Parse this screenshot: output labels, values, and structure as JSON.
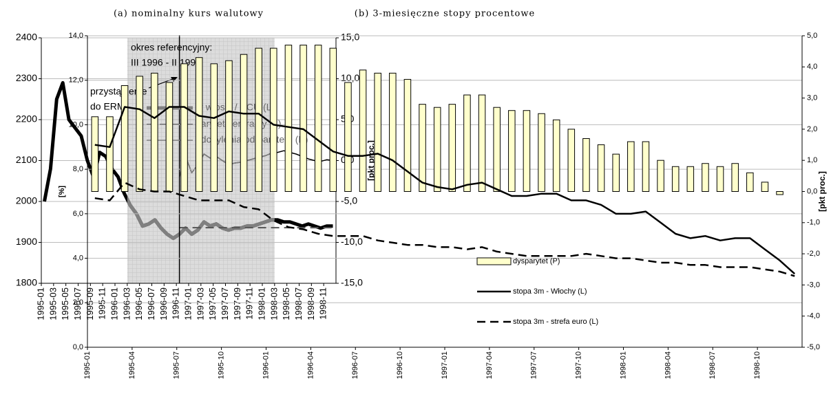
{
  "chart_data": [
    {
      "type": "line",
      "title": "(a) nominalny kurs walutowy",
      "y2label": "[pkt proc.]",
      "categories": [
        "1995-01",
        null,
        "1995-03",
        null,
        "1995-05",
        null,
        "1995-07",
        null,
        "1995-09",
        null,
        "1995-11",
        null,
        "1996-01",
        null,
        "1996-03",
        null,
        "1996-05",
        null,
        "1996-07",
        null,
        "1996-09",
        null,
        "1996-11",
        null,
        "1997-01",
        null,
        "1997-03",
        null,
        "1997-05",
        null,
        "1997-07",
        null,
        "1997-09",
        null,
        "1997-11",
        null,
        "1998-01",
        null,
        "1998-03",
        null,
        "1998-05",
        null,
        "1998-07",
        null,
        "1998-09",
        null,
        "1998-11",
        null
      ],
      "series": [
        {
          "name": "lir włoski / ECU (L)",
          "color": "#000000",
          "shaded_color": "#808080",
          "width": 5,
          "dash": false,
          "values": [
            2000,
            2080,
            2250,
            2290,
            2200,
            2180,
            2160,
            2100,
            2060,
            2120,
            2110,
            2080,
            2060,
            2020,
            1990,
            1970,
            1940,
            1945,
            1955,
            1935,
            1920,
            1910,
            1920,
            1935,
            1920,
            1930,
            1950,
            1940,
            1945,
            1935,
            1930,
            1935,
            1935,
            1940,
            1940,
            1945,
            1950,
            1955,
            1955,
            1950,
            1950,
            1945,
            1940,
            1945,
            1940,
            1935,
            1940,
            1940
          ]
        },
        {
          "name": "parytet centralny (L)",
          "color": "#555555",
          "width": 2,
          "dash": true,
          "values": [
            null,
            null,
            null,
            null,
            null,
            null,
            null,
            null,
            null,
            null,
            null,
            null,
            null,
            null,
            null,
            null,
            null,
            null,
            null,
            null,
            null,
            null,
            1936,
            1936,
            1936,
            1936,
            1936,
            1936,
            1936,
            1936,
            1936,
            1936,
            1936,
            1936,
            1936,
            1936,
            1936,
            1936,
            1936,
            1936,
            1936,
            1936,
            1936,
            1936,
            1936,
            1936,
            1936,
            1936
          ]
        },
        {
          "name": "odchylenia od parytetu (P)",
          "color": "#000000",
          "shaded_color": "#808080",
          "width": 1.5,
          "dash": false,
          "axis": "y2",
          "values": [
            null,
            null,
            null,
            null,
            null,
            null,
            null,
            null,
            null,
            null,
            null,
            null,
            null,
            null,
            null,
            null,
            null,
            null,
            null,
            null,
            null,
            null,
            -2.0,
            0.5,
            -1.5,
            -0.5,
            0.8,
            0.3,
            0.5,
            0.0,
            -0.5,
            -0.3,
            -0.2,
            0.0,
            0.2,
            0.4,
            0.6,
            0.9,
            1.0,
            1.2,
            1.0,
            0.8,
            0.5,
            0.2,
            0.0,
            -0.1,
            0.1,
            0.0
          ]
        }
      ],
      "ylim": [
        1800,
        2400
      ],
      "yticks": [
        1800,
        1900,
        2000,
        2100,
        2200,
        2300,
        2400
      ],
      "y2lim": [
        -15,
        15
      ],
      "y2ticks": [
        {
          "value": -15,
          "label": "-15,0"
        },
        {
          "value": -10,
          "label": "-10,0"
        },
        {
          "value": -5,
          "label": "-5,0"
        },
        {
          "value": 0,
          "label": "0,0"
        },
        {
          "value": 5,
          "label": "5,0"
        },
        {
          "value": 10,
          "label": "10,0"
        },
        {
          "value": 15,
          "label": "15,0"
        }
      ],
      "grid": true,
      "legend": "upper center",
      "annotations": [
        "okres referencyjny:",
        "III 1996 - II 1998",
        "przystąpienie",
        "do ERM"
      ]
    },
    {
      "type": "combo",
      "title": "(b) 3-miesięczne stopy procentowe",
      "ylabel": "[%]",
      "y2label": "[pkt proc.]",
      "categories": [
        "1995-01",
        null,
        null,
        "1995-04",
        null,
        null,
        "1995-07",
        null,
        null,
        "1995-10",
        null,
        null,
        "1996-01",
        null,
        null,
        "1996-04",
        null,
        null,
        "1996-07",
        null,
        null,
        "1996-10",
        null,
        null,
        "1997-01",
        null,
        null,
        "1997-04",
        null,
        null,
        "1997-07",
        null,
        null,
        "1997-10",
        null,
        null,
        "1998-01",
        null,
        null,
        "1998-04",
        null,
        null,
        "1998-07",
        null,
        null,
        "1998-10",
        null,
        null
      ],
      "series": [
        {
          "name": "dysparytet (P)",
          "type": "bar",
          "color": "#ffffcc",
          "axis": "y2",
          "values": [
            2.4,
            2.4,
            3.4,
            3.7,
            3.8,
            3.5,
            4.1,
            4.3,
            4.1,
            4.2,
            4.4,
            4.6,
            4.6,
            4.7,
            4.7,
            4.7,
            4.6,
            3.5,
            3.9,
            3.8,
            3.8,
            3.6,
            2.8,
            2.7,
            2.8,
            3.1,
            3.1,
            2.7,
            2.6,
            2.6,
            2.5,
            2.3,
            2.0,
            1.7,
            1.5,
            1.2,
            1.6,
            1.6,
            1.0,
            0.8,
            0.8,
            0.9,
            0.8,
            0.9,
            0.6,
            0.3,
            -0.1,
            null
          ]
        },
        {
          "name": "stopa 3m - Włochy (L)",
          "type": "line",
          "color": "#000000",
          "width": 2.5,
          "dash": false,
          "values": [
            9.1,
            9.0,
            10.8,
            10.7,
            10.3,
            10.8,
            10.8,
            10.4,
            10.3,
            10.6,
            10.5,
            10.5,
            10.0,
            9.9,
            9.8,
            9.3,
            8.8,
            8.6,
            8.6,
            8.7,
            8.4,
            7.9,
            7.4,
            7.2,
            7.1,
            7.3,
            7.4,
            7.1,
            6.8,
            6.8,
            6.9,
            6.9,
            6.6,
            6.6,
            6.4,
            6.0,
            6.0,
            6.1,
            5.6,
            5.1,
            4.9,
            5.0,
            4.8,
            4.9,
            4.9,
            4.4,
            3.9,
            3.3
          ]
        },
        {
          "name": "stopa 3m - strefa euro (L)",
          "type": "line",
          "color": "#000000",
          "width": 2.5,
          "dash": true,
          "values": [
            6.7,
            6.6,
            7.4,
            7.1,
            7.0,
            7.0,
            6.8,
            6.6,
            6.6,
            6.6,
            6.3,
            6.2,
            5.7,
            5.4,
            5.3,
            5.1,
            5.0,
            5.0,
            5.0,
            4.8,
            4.7,
            4.6,
            4.6,
            4.5,
            4.5,
            4.4,
            4.5,
            4.3,
            4.2,
            4.1,
            4.1,
            4.1,
            4.1,
            4.2,
            4.1,
            4.0,
            4.0,
            3.9,
            3.8,
            3.8,
            3.7,
            3.7,
            3.6,
            3.6,
            3.6,
            3.5,
            3.4,
            3.2
          ]
        }
      ],
      "ylim": [
        0,
        14
      ],
      "yticks": [
        {
          "value": 0,
          "label": "0,0"
        },
        {
          "value": 2,
          "label": "2,0"
        },
        {
          "value": 4,
          "label": "4,0"
        },
        {
          "value": 6,
          "label": "6,0"
        },
        {
          "value": 8,
          "label": "8,0"
        },
        {
          "value": 10,
          "label": "10,0"
        },
        {
          "value": 12,
          "label": "12,0"
        },
        {
          "value": 14,
          "label": "14,0"
        }
      ],
      "y2lim": [
        -5,
        5
      ],
      "y2ticks": [
        {
          "value": -5,
          "label": "-5,0"
        },
        {
          "value": -4,
          "label": "-4,0"
        },
        {
          "value": -3,
          "label": "-3,0"
        },
        {
          "value": -2,
          "label": "-2,0"
        },
        {
          "value": -1,
          "label": "-1,0"
        },
        {
          "value": 0,
          "label": "0,0"
        },
        {
          "value": 1,
          "label": "1,0"
        },
        {
          "value": 2,
          "label": "2,0"
        },
        {
          "value": 3,
          "label": "3,0"
        },
        {
          "value": 4,
          "label": "4,0"
        },
        {
          "value": 5,
          "label": "5,0"
        }
      ],
      "grid": true,
      "legend": "lower left"
    }
  ]
}
